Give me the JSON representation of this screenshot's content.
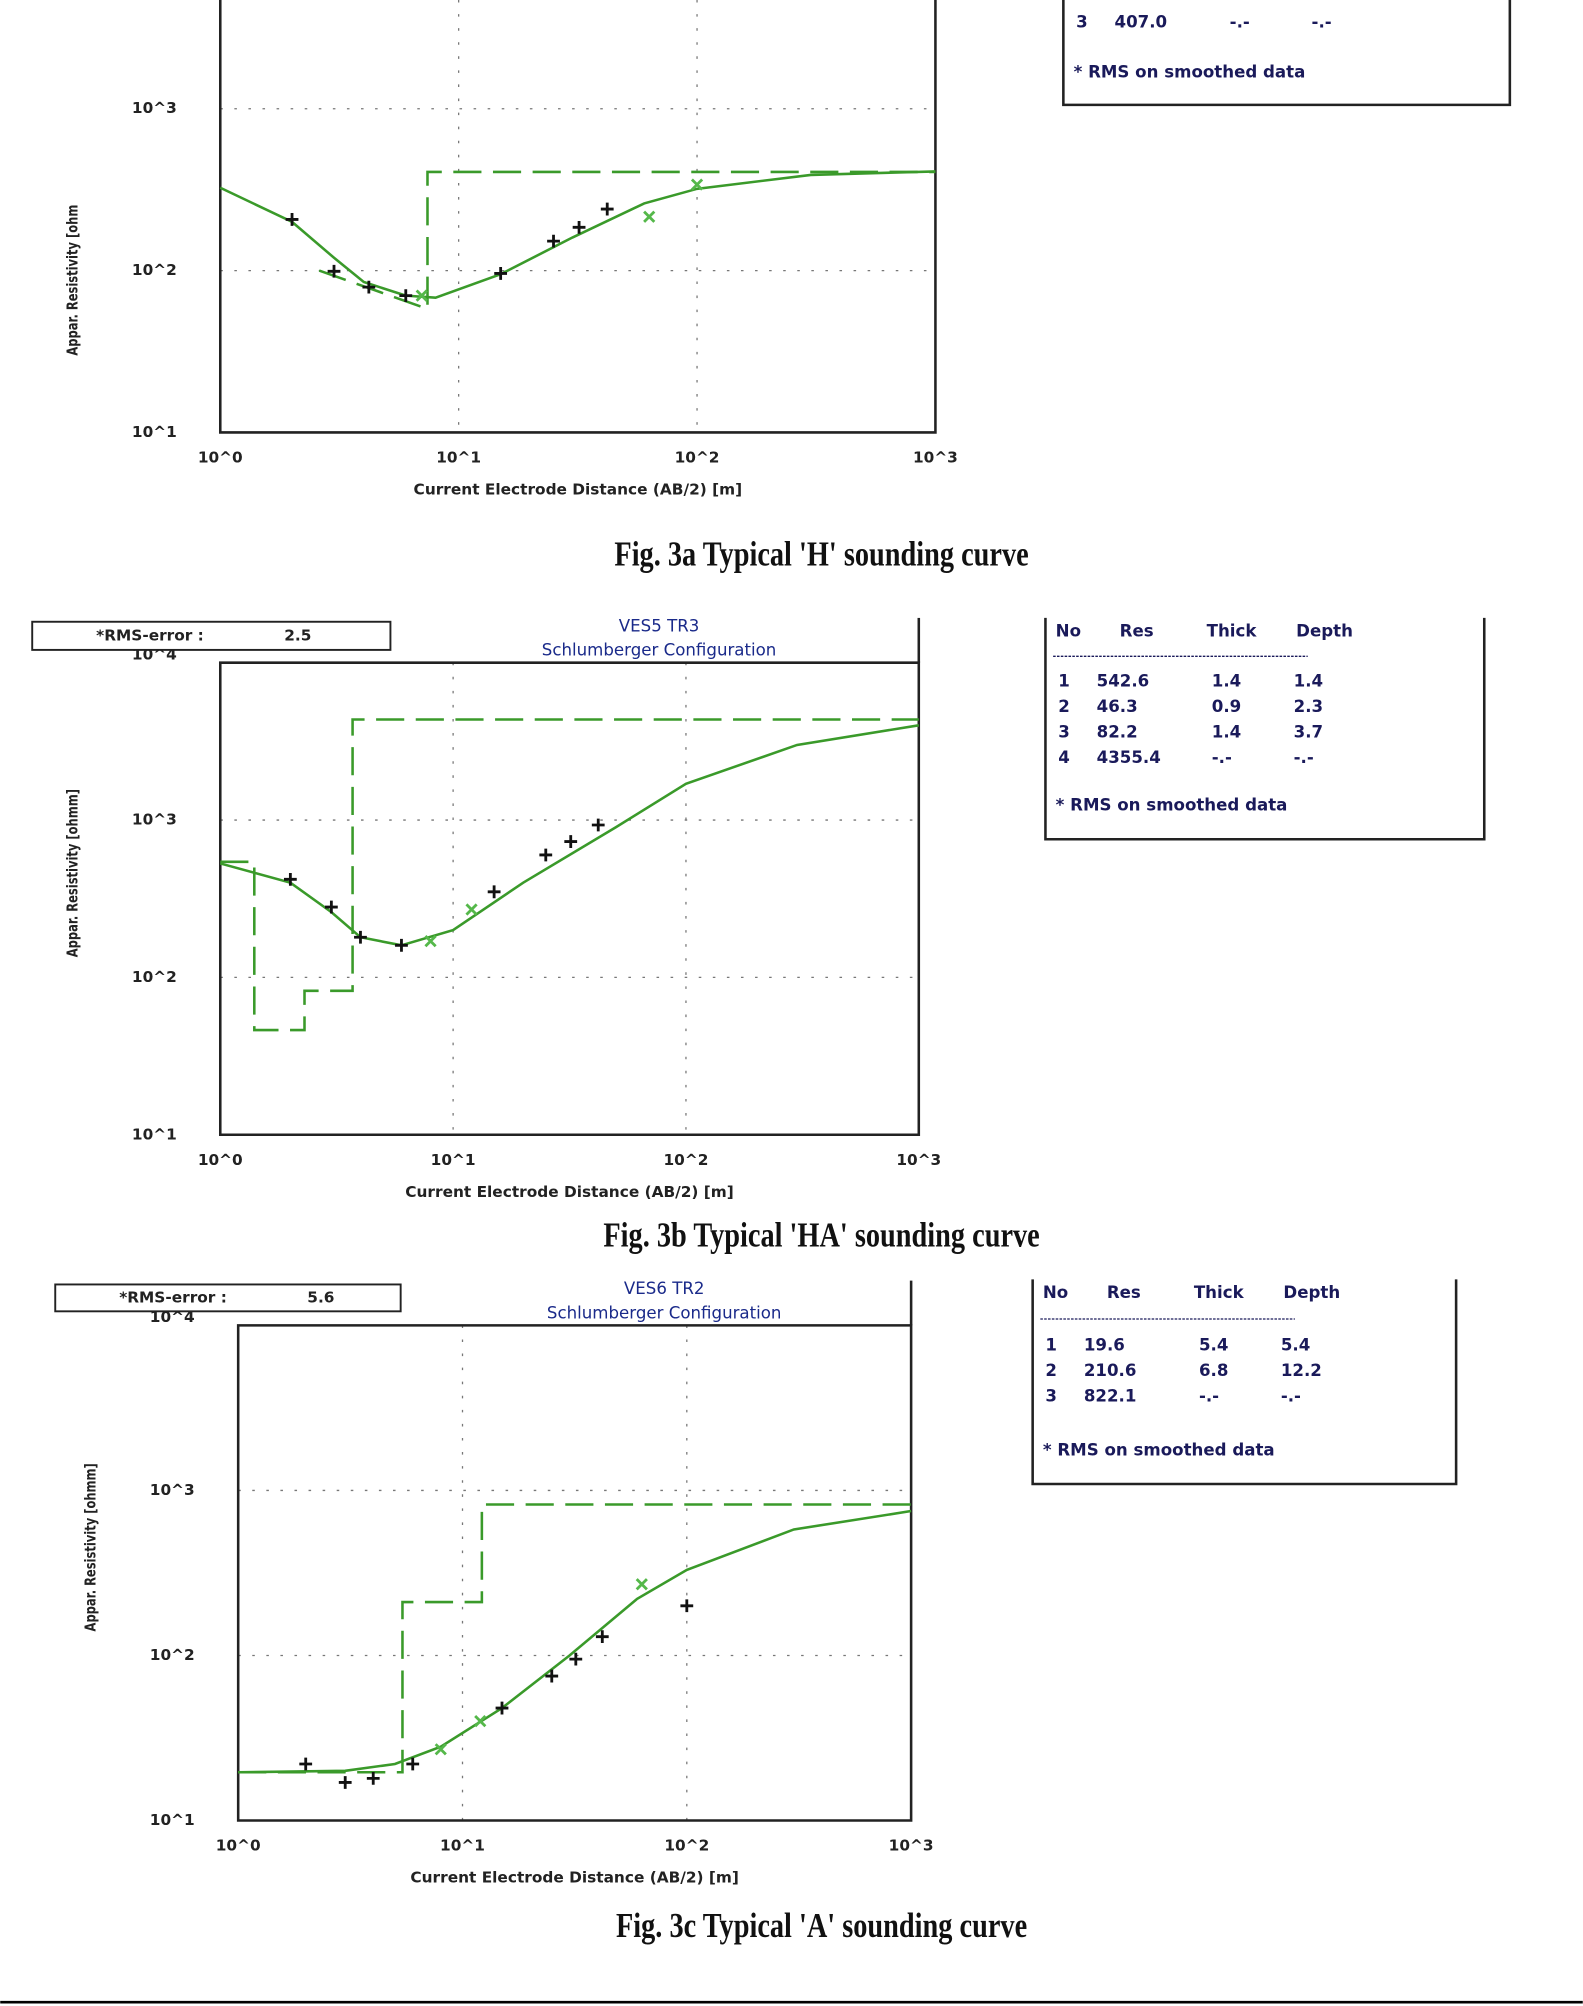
{
  "chart_data": [
    {
      "type": "line",
      "log_x": true,
      "log_y": true,
      "grid": true,
      "ylabel": "Appar. Resistivity [ohm",
      "xlabel": "Current Electrode Distance (AB/2) [m]",
      "caption": "Fig. 3a Typical 'H' sounding curve",
      "xlim": [
        1,
        1000
      ],
      "ylim": [
        10,
        10000
      ],
      "xticks": [
        {
          "value": 1,
          "label": "10^0"
        },
        {
          "value": 10,
          "label": "10^1"
        },
        {
          "value": 100,
          "label": "10^2"
        },
        {
          "value": 1000,
          "label": "10^3"
        }
      ],
      "yticks": [
        {
          "value": 10,
          "label": "10^1"
        },
        {
          "value": 100,
          "label": "10^2"
        },
        {
          "value": 1000,
          "label": "10^3"
        }
      ],
      "series": [
        {
          "style": "line",
          "color": "#3a9a2a",
          "x": [
            1,
            2,
            3,
            4,
            6,
            8,
            15,
            30,
            60,
            100,
            300,
            1000
          ],
          "values": [
            325,
            200,
            120,
            85,
            70,
            68,
            95,
            160,
            260,
            320,
            390,
            410
          ]
        },
        {
          "style": "dashed",
          "color": "#3a9a2a",
          "x": [
            2.6,
            7.4,
            7.4,
            1000
          ],
          "values": [
            100,
            58,
            407,
            407
          ]
        },
        {
          "style": "plus",
          "color": "#111111",
          "x": [
            2,
            3,
            4.2,
            6,
            15,
            25,
            32,
            42
          ],
          "values": [
            207,
            99,
            79,
            70,
            96,
            152,
            185,
            240
          ]
        },
        {
          "style": "cross",
          "color": "#55b84a",
          "x": [
            7,
            63,
            100
          ],
          "values": [
            70,
            215,
            340
          ]
        }
      ],
      "table": {
        "rows": [
          [
            "3",
            "407.0",
            "-.-",
            "-.-"
          ]
        ],
        "note": "* RMS on smoothed data"
      }
    },
    {
      "type": "line",
      "log_x": true,
      "log_y": true,
      "grid": true,
      "title": "VES5 TR3",
      "subtitle": "Schlumberger Configuration",
      "rms_label": "*RMS-error :",
      "rms": 2.5,
      "ylabel": "Appar. Resistivity [ohmm]",
      "xlabel": "Current Electrode Distance (AB/2) [m]",
      "caption": "Fig. 3b Typical 'HA' sounding curve",
      "xlim": [
        1,
        1000
      ],
      "ylim": [
        10,
        10000
      ],
      "xticks": [
        {
          "value": 1,
          "label": "10^0"
        },
        {
          "value": 10,
          "label": "10^1"
        },
        {
          "value": 100,
          "label": "10^2"
        },
        {
          "value": 1000,
          "label": "10^3"
        }
      ],
      "yticks": [
        {
          "value": 10,
          "label": "10^1"
        },
        {
          "value": 100,
          "label": "10^2"
        },
        {
          "value": 1000,
          "label": "10^3"
        },
        {
          "value": 10000,
          "label": "10^4"
        }
      ],
      "series": [
        {
          "style": "line",
          "color": "#3a9a2a",
          "x": [
            1,
            2,
            3,
            4,
            6,
            10,
            20,
            50,
            100,
            300,
            1000
          ],
          "values": [
            530,
            400,
            260,
            180,
            160,
            200,
            400,
            900,
            1700,
            3000,
            4000
          ]
        },
        {
          "style": "dashed",
          "color": "#3a9a2a",
          "x": [
            1,
            1.4,
            1.4,
            2.3,
            2.3,
            3.7,
            3.7,
            1000
          ],
          "values": [
            542.6,
            542.6,
            46.3,
            46.3,
            82.2,
            82.2,
            4355.4,
            4355.4
          ]
        },
        {
          "style": "plus",
          "color": "#111111",
          "x": [
            2,
            3,
            4,
            6,
            15,
            25,
            32,
            42
          ],
          "values": [
            420,
            280,
            180,
            160,
            350,
            600,
            730,
            930
          ]
        },
        {
          "style": "cross",
          "color": "#55b84a",
          "x": [
            8,
            12
          ],
          "values": [
            170,
            270
          ]
        }
      ],
      "table": {
        "header": [
          "No",
          "Res",
          "Thick",
          "Depth"
        ],
        "rows": [
          [
            "1",
            "542.6",
            "1.4",
            "1.4"
          ],
          [
            "2",
            "46.3",
            "0.9",
            "2.3"
          ],
          [
            "3",
            "82.2",
            "1.4",
            "3.7"
          ],
          [
            "4",
            "4355.4",
            "-.-",
            "-.-"
          ]
        ],
        "note": "* RMS on smoothed data"
      }
    },
    {
      "type": "line",
      "log_x": true,
      "log_y": true,
      "grid": true,
      "title": "VES6 TR2",
      "subtitle": "Schlumberger Configuration",
      "rms_label": "*RMS-error :",
      "rms": 5.6,
      "ylabel": "Appar. Resistivity [ohmm]",
      "xlabel": "Current Electrode Distance (AB/2) [m]",
      "caption": "Fig. 3c Typical 'A' sounding curve",
      "xlim": [
        1,
        1000
      ],
      "ylim": [
        10,
        10000
      ],
      "xticks": [
        {
          "value": 1,
          "label": "10^0"
        },
        {
          "value": 10,
          "label": "10^1"
        },
        {
          "value": 100,
          "label": "10^2"
        },
        {
          "value": 1000,
          "label": "10^3"
        }
      ],
      "yticks": [
        {
          "value": 10,
          "label": "10^1"
        },
        {
          "value": 100,
          "label": "10^2"
        },
        {
          "value": 1000,
          "label": "10^3"
        },
        {
          "value": 10000,
          "label": "10^4"
        }
      ],
      "series": [
        {
          "style": "line",
          "color": "#3a9a2a",
          "x": [
            1,
            3,
            5,
            8,
            15,
            30,
            60,
            100,
            300,
            1000
          ],
          "values": [
            19.6,
            20,
            22,
            28,
            48,
            100,
            220,
            330,
            580,
            750
          ]
        },
        {
          "style": "dashed",
          "color": "#3a9a2a",
          "x": [
            1,
            5.4,
            5.4,
            12.2,
            12.2,
            1000
          ],
          "values": [
            19.6,
            19.6,
            210.6,
            210.6,
            822.1,
            822.1
          ]
        },
        {
          "style": "plus",
          "color": "#111111",
          "x": [
            2,
            3,
            4,
            6,
            15,
            25,
            32,
            42,
            100
          ],
          "values": [
            22,
            17,
            18,
            22,
            48,
            75,
            95,
            130,
            200
          ]
        },
        {
          "style": "cross",
          "color": "#55b84a",
          "x": [
            8,
            12,
            63
          ],
          "values": [
            27,
            40,
            270
          ]
        }
      ],
      "table": {
        "header": [
          "No",
          "Res",
          "Thick",
          "Depth"
        ],
        "rows": [
          [
            "1",
            "19.6",
            "5.4",
            "5.4"
          ],
          [
            "2",
            "210.6",
            "6.8",
            "12.2"
          ],
          [
            "3",
            "822.1",
            "-.-",
            "-.-"
          ]
        ],
        "note": "* RMS on smoothed data"
      }
    }
  ]
}
